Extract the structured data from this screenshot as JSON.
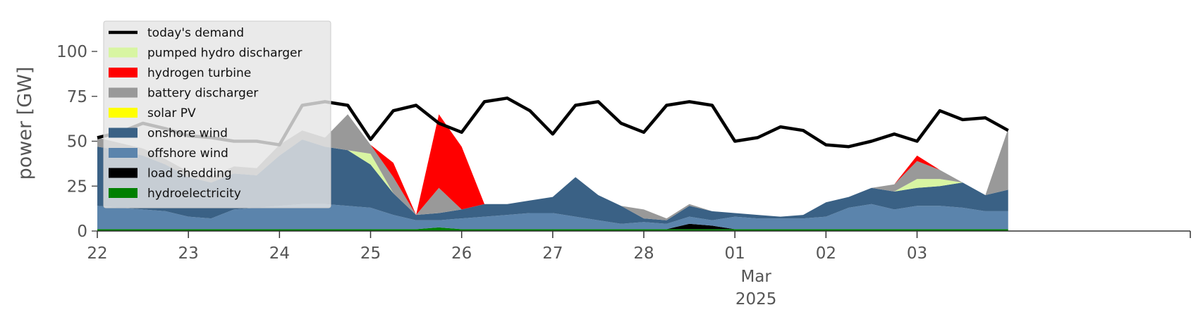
{
  "chart_data": {
    "type": "area",
    "ylabel": "power [GW]",
    "ylim": [
      0,
      120
    ],
    "yticks": [
      0,
      25,
      50,
      75,
      100
    ],
    "xlim": [
      0,
      12
    ],
    "x_ticks": [
      {
        "x": 0,
        "label": "22"
      },
      {
        "x": 1,
        "label": "23"
      },
      {
        "x": 2,
        "label": "24"
      },
      {
        "x": 3,
        "label": "25"
      },
      {
        "x": 4,
        "label": "26"
      },
      {
        "x": 5,
        "label": "27"
      },
      {
        "x": 6,
        "label": "28"
      },
      {
        "x": 7,
        "label": "01"
      },
      {
        "x": 8,
        "label": "02"
      },
      {
        "x": 9,
        "label": "03"
      }
    ],
    "x_sublabels": [
      "Mar",
      "2025"
    ],
    "grid": false,
    "legend_position": "top-left",
    "x": [
      0,
      0.25,
      0.5,
      0.75,
      1,
      1.25,
      1.5,
      1.75,
      2,
      2.25,
      2.5,
      2.75,
      3,
      3.25,
      3.5,
      3.75,
      4,
      4.25,
      4.5,
      4.75,
      5,
      5.25,
      5.5,
      5.75,
      6,
      6.25,
      6.5,
      6.75,
      7,
      7.25,
      7.5,
      7.75,
      8,
      8.25,
      8.5,
      8.75,
      9,
      9.25,
      9.5,
      9.75,
      10
    ],
    "series": [
      {
        "name": "hydroelectricity",
        "color": "#008000",
        "values": [
          1,
          1,
          1,
          1,
          1,
          1,
          1,
          1,
          1,
          1,
          1,
          1,
          1,
          1,
          1,
          2,
          1,
          1,
          1,
          1,
          1,
          1,
          1,
          1,
          1,
          1,
          1,
          1,
          1,
          1,
          1,
          1,
          1,
          1,
          1,
          1,
          1,
          1,
          1,
          1,
          1
        ]
      },
      {
        "name": "load shedding",
        "color": "#000000",
        "values": [
          0,
          0,
          0,
          0,
          0,
          0,
          0,
          0,
          0,
          0,
          0,
          0,
          0,
          0,
          0,
          0,
          0,
          0,
          0,
          0,
          0,
          0,
          0,
          0,
          0,
          0,
          3,
          2,
          0,
          0,
          0,
          0,
          0,
          0,
          0,
          0,
          0,
          0,
          0,
          0,
          0
        ]
      },
      {
        "name": "offshore wind",
        "color": "#5b84ac",
        "values": [
          13,
          12,
          11,
          10,
          7,
          6,
          11,
          12,
          13,
          14,
          14,
          13,
          12,
          8,
          5,
          4,
          6,
          7,
          8,
          9,
          9,
          7,
          5,
          3,
          4,
          3,
          4,
          3,
          7,
          6,
          6,
          6,
          7,
          12,
          14,
          11,
          13,
          13,
          12,
          10,
          10
        ]
      },
      {
        "name": "onshore wind",
        "color": "#3a6185",
        "values": [
          33,
          32,
          30,
          26,
          22,
          20,
          20,
          18,
          28,
          36,
          32,
          31,
          24,
          12,
          3,
          4,
          5,
          7,
          6,
          7,
          9,
          22,
          14,
          10,
          2,
          2,
          6,
          5,
          2,
          2,
          1,
          2,
          8,
          6,
          9,
          10,
          10,
          11,
          14,
          9,
          12
        ]
      },
      {
        "name": "pumped hydro discharger",
        "color": "#d8f5a2",
        "values": [
          0,
          0,
          0,
          0,
          0,
          0,
          0,
          0,
          0,
          0,
          0,
          0,
          6,
          0,
          0,
          0,
          0,
          0,
          0,
          0,
          0,
          0,
          0,
          0,
          0,
          0,
          0,
          0,
          0,
          0,
          0,
          0,
          0,
          0,
          0,
          0,
          5,
          4,
          0,
          0,
          0
        ]
      },
      {
        "name": "battery discharger",
        "color": "#999999",
        "values": [
          5,
          4,
          4,
          3,
          3,
          3,
          4,
          4,
          6,
          5,
          5,
          20,
          5,
          9,
          0,
          14,
          0,
          0,
          0,
          0,
          0,
          0,
          0,
          0,
          5,
          1,
          1,
          0,
          0,
          0,
          0,
          0,
          0,
          0,
          0,
          4,
          10,
          5,
          0,
          0,
          34
        ]
      },
      {
        "name": "hydrogen turbine",
        "color": "#ff0000",
        "values": [
          0,
          0,
          0,
          0,
          0,
          0,
          0,
          0,
          0,
          0,
          0,
          0,
          0,
          8,
          0,
          41,
          35,
          0,
          0,
          0,
          0,
          0,
          0,
          0,
          0,
          0,
          0,
          0,
          0,
          0,
          0,
          0,
          0,
          0,
          0,
          0,
          3,
          0,
          0,
          0,
          0
        ]
      },
      {
        "name": "solar PV",
        "color": "#ffff00",
        "values": [
          0,
          0,
          0,
          0,
          0,
          0,
          0,
          0,
          0,
          0,
          0,
          0,
          0,
          0,
          0,
          0,
          0,
          0,
          0,
          0,
          0,
          0,
          0,
          0,
          0,
          0,
          0,
          0,
          0,
          0,
          0,
          0,
          0,
          0,
          0,
          0,
          0,
          0,
          0,
          0,
          0
        ]
      },
      {
        "name": "today's demand",
        "color": "#000000",
        "type": "line",
        "values": [
          52,
          55,
          60,
          57,
          53,
          52,
          50,
          50,
          48,
          70,
          72,
          70,
          51,
          67,
          70,
          60,
          55,
          72,
          74,
          67,
          54,
          70,
          72,
          60,
          55,
          70,
          72,
          70,
          50,
          52,
          58,
          56,
          48,
          47,
          50,
          54,
          50,
          67,
          62,
          63,
          56
        ]
      }
    ]
  }
}
